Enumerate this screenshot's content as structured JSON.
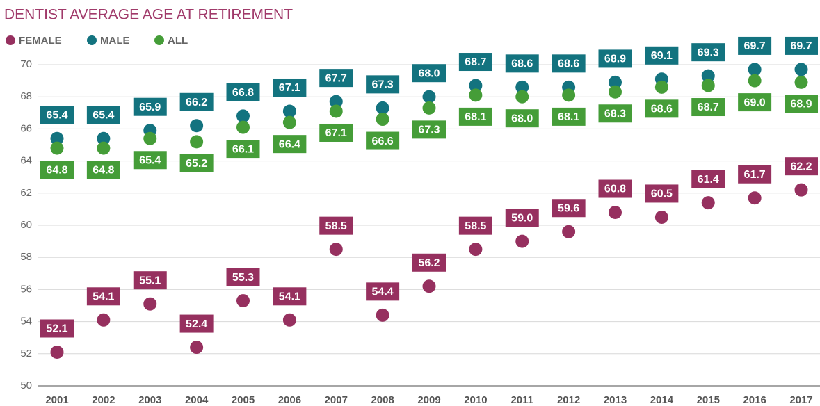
{
  "chart_data": {
    "type": "scatter",
    "title": "DENTIST AVERAGE AGE AT RETIREMENT",
    "categories": [
      "2001",
      "2002",
      "2003",
      "2004",
      "2005",
      "2006",
      "2007",
      "2008",
      "2009",
      "2010",
      "2011",
      "2012",
      "2013",
      "2014",
      "2015",
      "2016",
      "2017"
    ],
    "series": [
      {
        "name": "FEMALE",
        "color": "#96305f",
        "values": [
          52.1,
          54.1,
          55.1,
          52.4,
          55.3,
          54.1,
          58.5,
          54.4,
          56.2,
          58.5,
          59.0,
          59.6,
          60.8,
          60.5,
          61.4,
          61.7,
          62.2
        ],
        "value_labels": [
          "52.1",
          "54.1",
          "55.1",
          "52.4",
          "55.3",
          "54.1",
          "58.5",
          "54.4",
          "56.2",
          "58.5",
          "59.0",
          "59.6",
          "60.8",
          "60.5",
          "61.4",
          "61.7",
          "62.2"
        ]
      },
      {
        "name": "MALE",
        "color": "#13737f",
        "values": [
          65.4,
          65.4,
          65.9,
          66.2,
          66.8,
          67.1,
          67.7,
          67.3,
          68.0,
          68.7,
          68.6,
          68.6,
          68.9,
          69.1,
          69.3,
          69.7,
          69.7
        ],
        "value_labels": [
          "65.4",
          "65.4",
          "65.9",
          "66.2",
          "66.8",
          "67.1",
          "67.7",
          "67.3",
          "68.0",
          "68.7",
          "68.6",
          "68.6",
          "68.9",
          "69.1",
          "69.3",
          "69.7",
          "69.7"
        ]
      },
      {
        "name": "ALL",
        "color": "#459d38",
        "values": [
          64.8,
          64.8,
          65.4,
          65.2,
          66.1,
          66.4,
          67.1,
          66.6,
          67.3,
          68.1,
          68.0,
          68.1,
          68.3,
          68.6,
          68.7,
          69.0,
          68.9
        ],
        "value_labels": [
          "64.8",
          "64.8",
          "65.4",
          "65.2",
          "66.1",
          "66.4",
          "67.1",
          "66.6",
          "67.3",
          "68.1",
          "68.0",
          "68.1",
          "68.3",
          "68.6",
          "68.7",
          "69.0",
          "68.9"
        ]
      }
    ],
    "ylim": [
      50,
      70
    ],
    "yticks": [
      50,
      52,
      54,
      56,
      58,
      60,
      62,
      64,
      66,
      68,
      70
    ],
    "grid": true
  }
}
